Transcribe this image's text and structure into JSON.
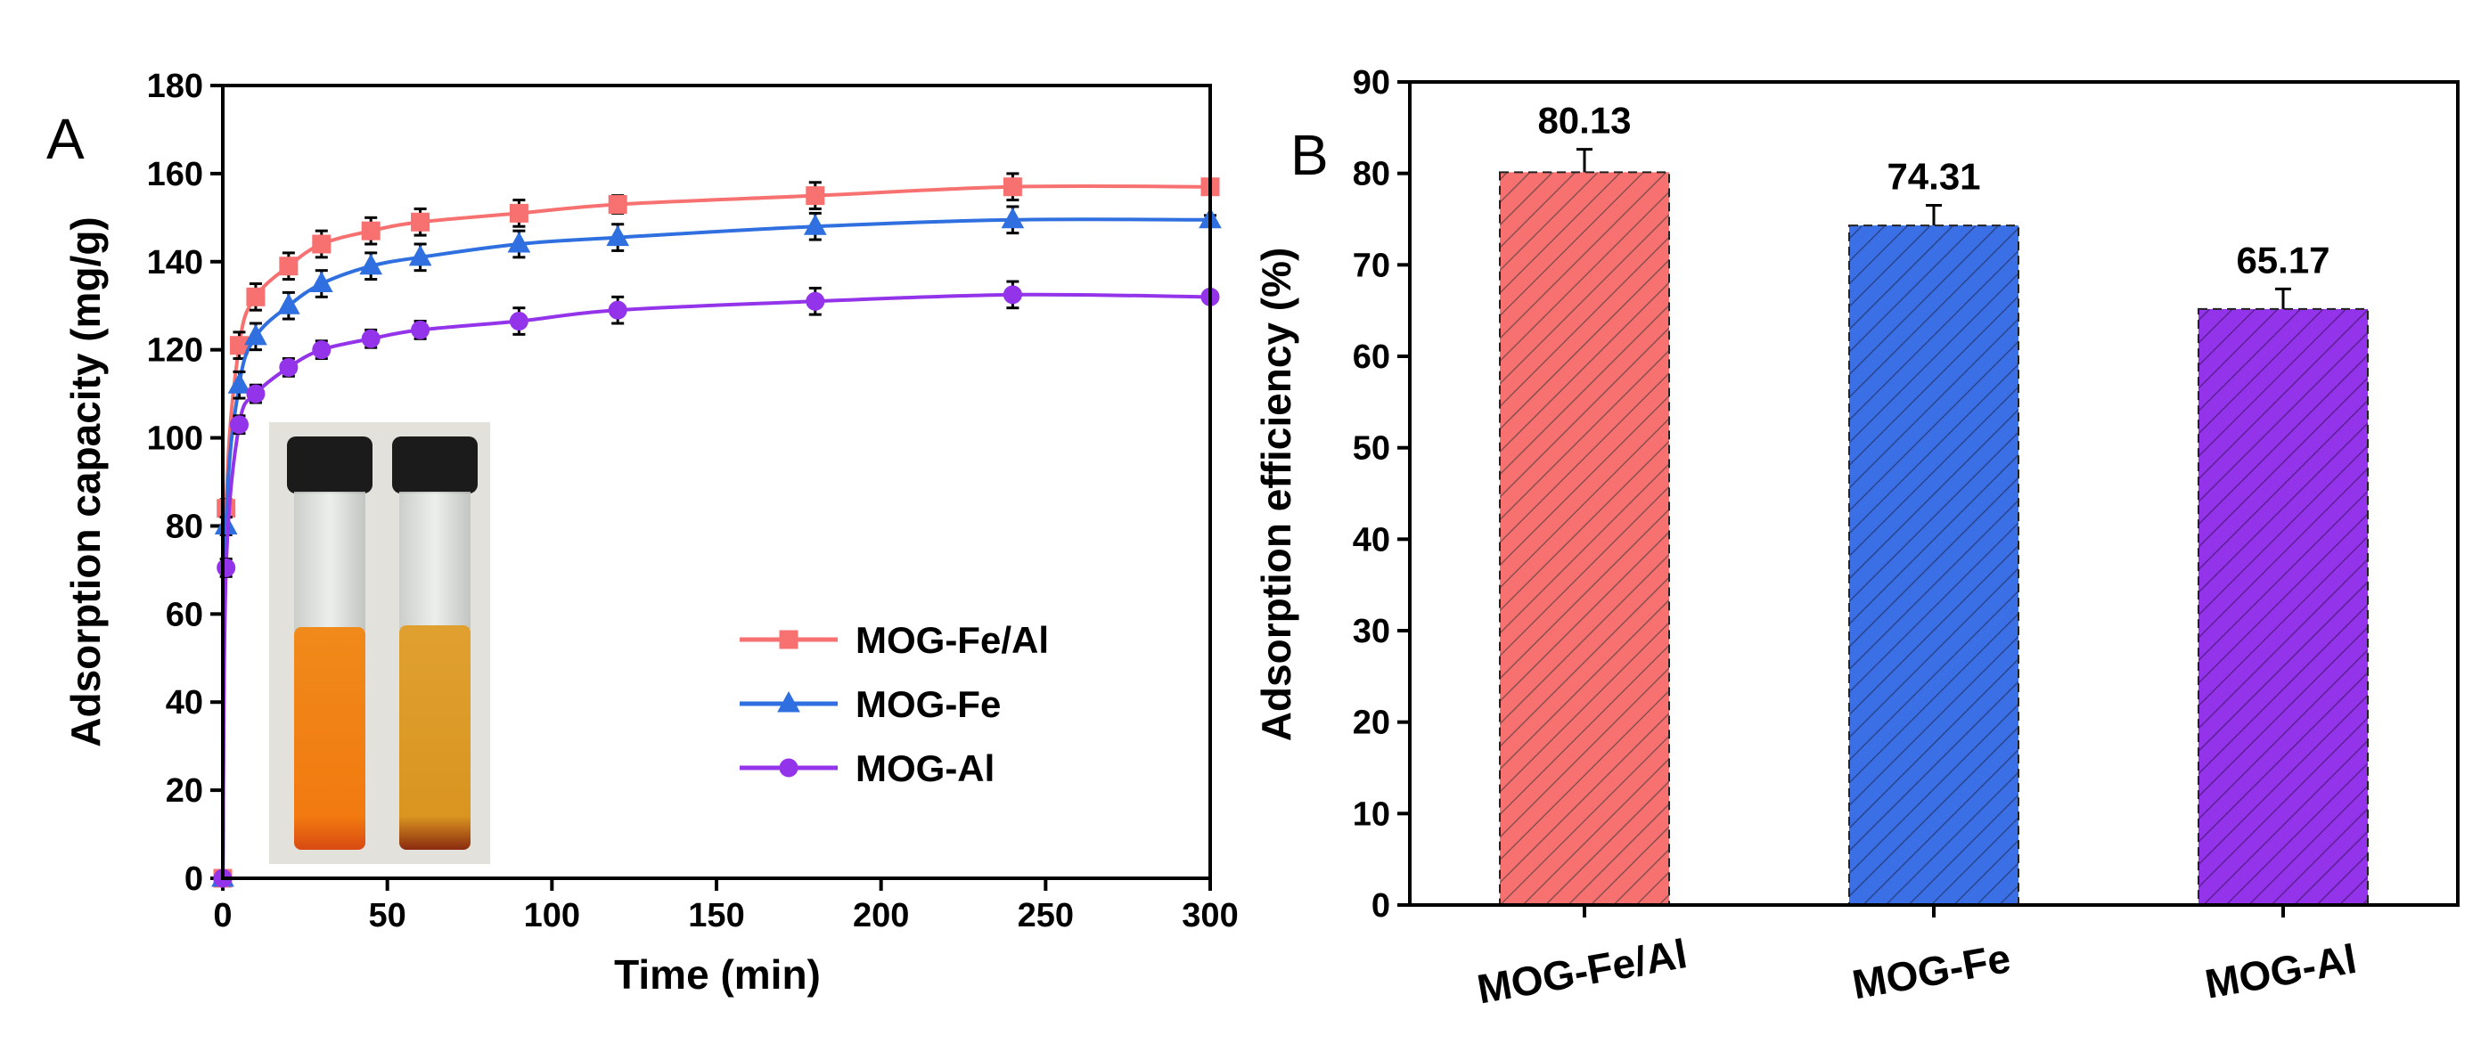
{
  "chart_data": [
    {
      "type": "line",
      "panel_label": "A",
      "xlabel": "Time (min)",
      "ylabel": "Adsorption capacity (mg/g)",
      "xlim": [
        0,
        300
      ],
      "ylim": [
        0,
        180
      ],
      "xticks": [
        0,
        50,
        100,
        150,
        200,
        250,
        300
      ],
      "yticks": [
        0,
        20,
        40,
        60,
        80,
        100,
        120,
        140,
        160,
        180
      ],
      "legend_position": "center-right",
      "x": [
        0,
        1,
        5,
        10,
        20,
        30,
        45,
        60,
        90,
        120,
        180,
        240,
        300
      ],
      "series": [
        {
          "name": "MOG-Fe/Al",
          "marker": "square",
          "color": "#F87171",
          "values": [
            0,
            84,
            121,
            132,
            139,
            144,
            147,
            149,
            151,
            153,
            155,
            157,
            157
          ],
          "errors": [
            0,
            2,
            3,
            3,
            3,
            3,
            3,
            3,
            3,
            2,
            3,
            3,
            1
          ]
        },
        {
          "name": "MOG-Fe",
          "marker": "triangle",
          "color": "#2F6FE0",
          "values": [
            0,
            80,
            112,
            123,
            130,
            135,
            139,
            141,
            144,
            145.5,
            148,
            149.5,
            149.5
          ],
          "errors": [
            0,
            2,
            3,
            3,
            3,
            3,
            3,
            3,
            3,
            3,
            3,
            3,
            1
          ]
        },
        {
          "name": "MOG-Al",
          "marker": "circle",
          "color": "#9333EA",
          "values": [
            0,
            70.5,
            103,
            110,
            116,
            120,
            122.5,
            124.5,
            126.5,
            129,
            131,
            132.5,
            132
          ],
          "errors": [
            0,
            2,
            2,
            2,
            2,
            2,
            2,
            2,
            3,
            3,
            3,
            3,
            1
          ]
        }
      ],
      "inset": "photo of two vials containing orange and amber solutions"
    },
    {
      "type": "bar",
      "panel_label": "B",
      "xlabel": "",
      "ylabel": "Adsorption efficiency (%)",
      "ylim": [
        0,
        90
      ],
      "yticks": [
        0,
        10,
        20,
        30,
        40,
        50,
        60,
        70,
        80,
        90
      ],
      "categories": [
        "MOG-Fe/Al",
        "MOG-Fe",
        "MOG-Al"
      ],
      "values": [
        80.13,
        74.31,
        65.17
      ],
      "value_labels": [
        "80.13",
        "74.31",
        "65.17"
      ],
      "errors": [
        2.5,
        2.2,
        2.2
      ],
      "colors": [
        "#F87171",
        "#3B6FE6",
        "#9333EA"
      ],
      "pattern": "diagonal hatch"
    }
  ]
}
